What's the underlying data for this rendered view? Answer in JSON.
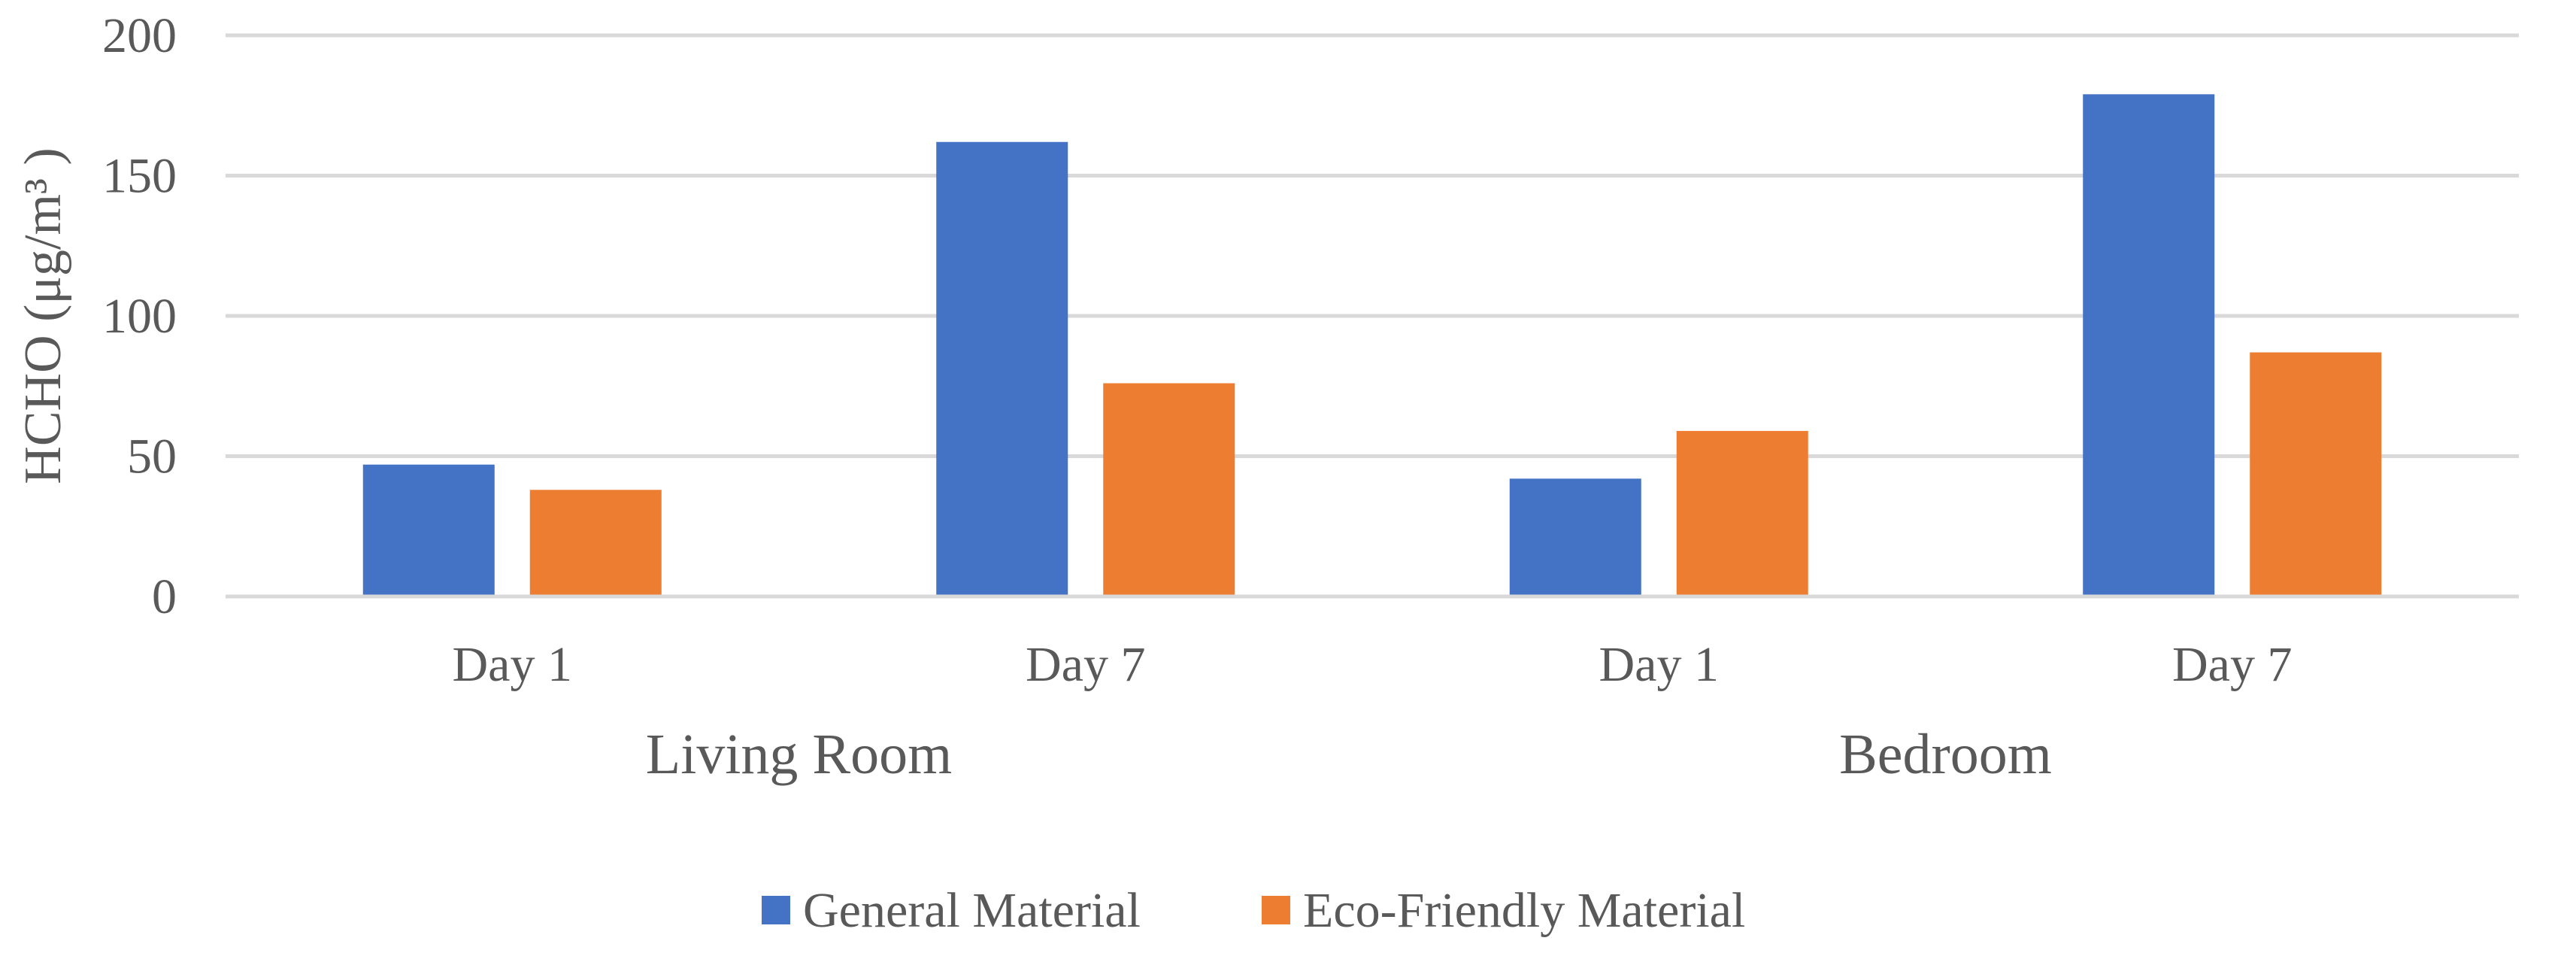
{
  "chart_data": {
    "type": "bar",
    "title": "",
    "ylabel": "HCHO (μg/m³ )",
    "xlabel": "",
    "ylim": [
      0,
      200
    ],
    "yticks": [
      0,
      50,
      100,
      150,
      200
    ],
    "grid": true,
    "legend_position": "bottom",
    "groups": [
      {
        "label": "Living Room",
        "categories": [
          "Day 1",
          "Day 7"
        ]
      },
      {
        "label": "Bedroom",
        "categories": [
          "Day 1",
          "Day 7"
        ]
      }
    ],
    "categories": [
      "Day 1",
      "Day 7",
      "Day 1",
      "Day 7"
    ],
    "series": [
      {
        "name": "General Material",
        "color": "#4472C4",
        "values": [
          47,
          162,
          42,
          179
        ]
      },
      {
        "name": "Eco-Friendly Material",
        "color": "#ED7D31",
        "values": [
          38,
          76,
          59,
          87
        ]
      }
    ]
  }
}
